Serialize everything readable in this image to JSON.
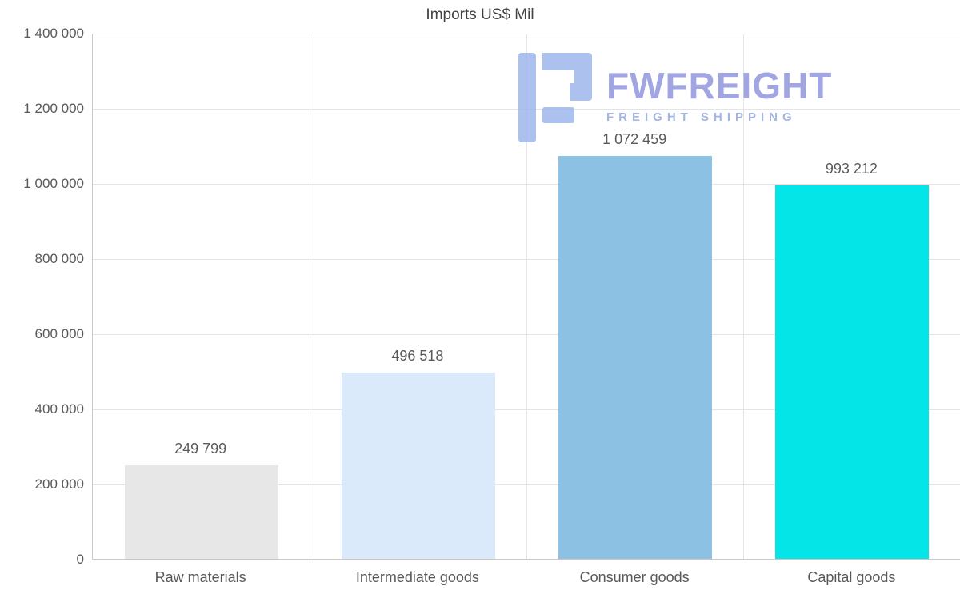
{
  "title": "Imports US$ Mil",
  "watermark": {
    "brand": "FWFREIGHT",
    "tagline": "FREIGHT SHIPPING",
    "glyph": "fwfreight-logo-mark",
    "brand_color": "#7d83d7",
    "tagline_color": "#94a8e0",
    "mark_color": "#9db6ea"
  },
  "chart_data": {
    "type": "bar",
    "title": "Imports US$ Mil",
    "categories": [
      "Raw materials",
      "Intermediate goods",
      "Consumer goods",
      "Capital goods"
    ],
    "values": [
      249799,
      496518,
      1072459,
      993212
    ],
    "value_labels": [
      "249 799",
      "496 518",
      "1 072 459",
      "993 212"
    ],
    "bar_colors": [
      "#e7e7e7",
      "#daeafb",
      "#8dc1e3",
      "#04e5e8"
    ],
    "xlabel": "",
    "ylabel": "",
    "ylim": [
      0,
      1400000
    ],
    "yticks": [
      0,
      200000,
      400000,
      600000,
      800000,
      1000000,
      1200000,
      1400000
    ],
    "ytick_labels": [
      "0",
      "200 000",
      "400 000",
      "600 000",
      "800 000",
      "1 000 000",
      "1 200 000",
      "1 400 000"
    ],
    "grid": "horizontal gridlines at each y tick, vertical separators between categories",
    "legend": "none",
    "label_color": "#595959",
    "grid_color": "#e4e4e4",
    "axis_color": "#c9c9c9"
  }
}
